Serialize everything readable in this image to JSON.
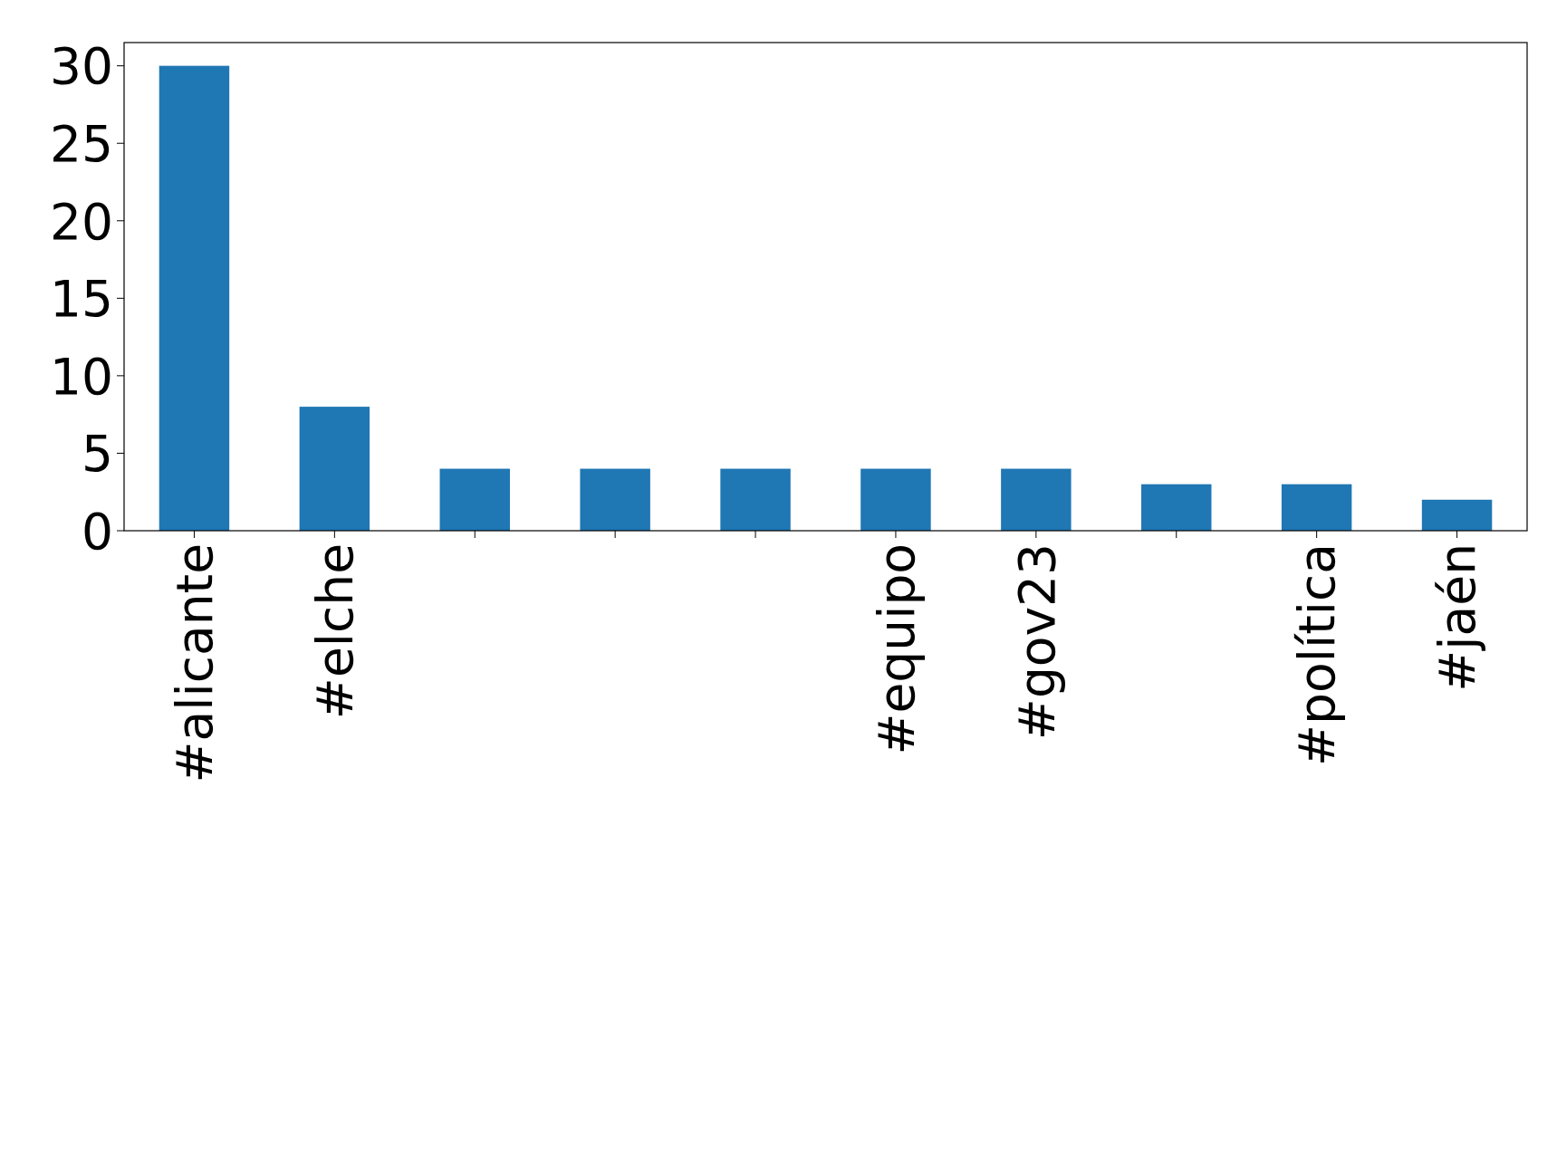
{
  "chart_data": {
    "type": "bar",
    "categories": [
      "#alicante",
      "#elche",
      null,
      null,
      null,
      "#equipo",
      "#gov23",
      null,
      "#política",
      "#jaén"
    ],
    "values": [
      30,
      8,
      4,
      4,
      4,
      4,
      4,
      3,
      3,
      2
    ],
    "color": "#1f77b4",
    "ylim": [
      0,
      31.5
    ],
    "yticks": [
      0,
      5,
      10,
      15,
      20,
      25,
      30
    ]
  }
}
